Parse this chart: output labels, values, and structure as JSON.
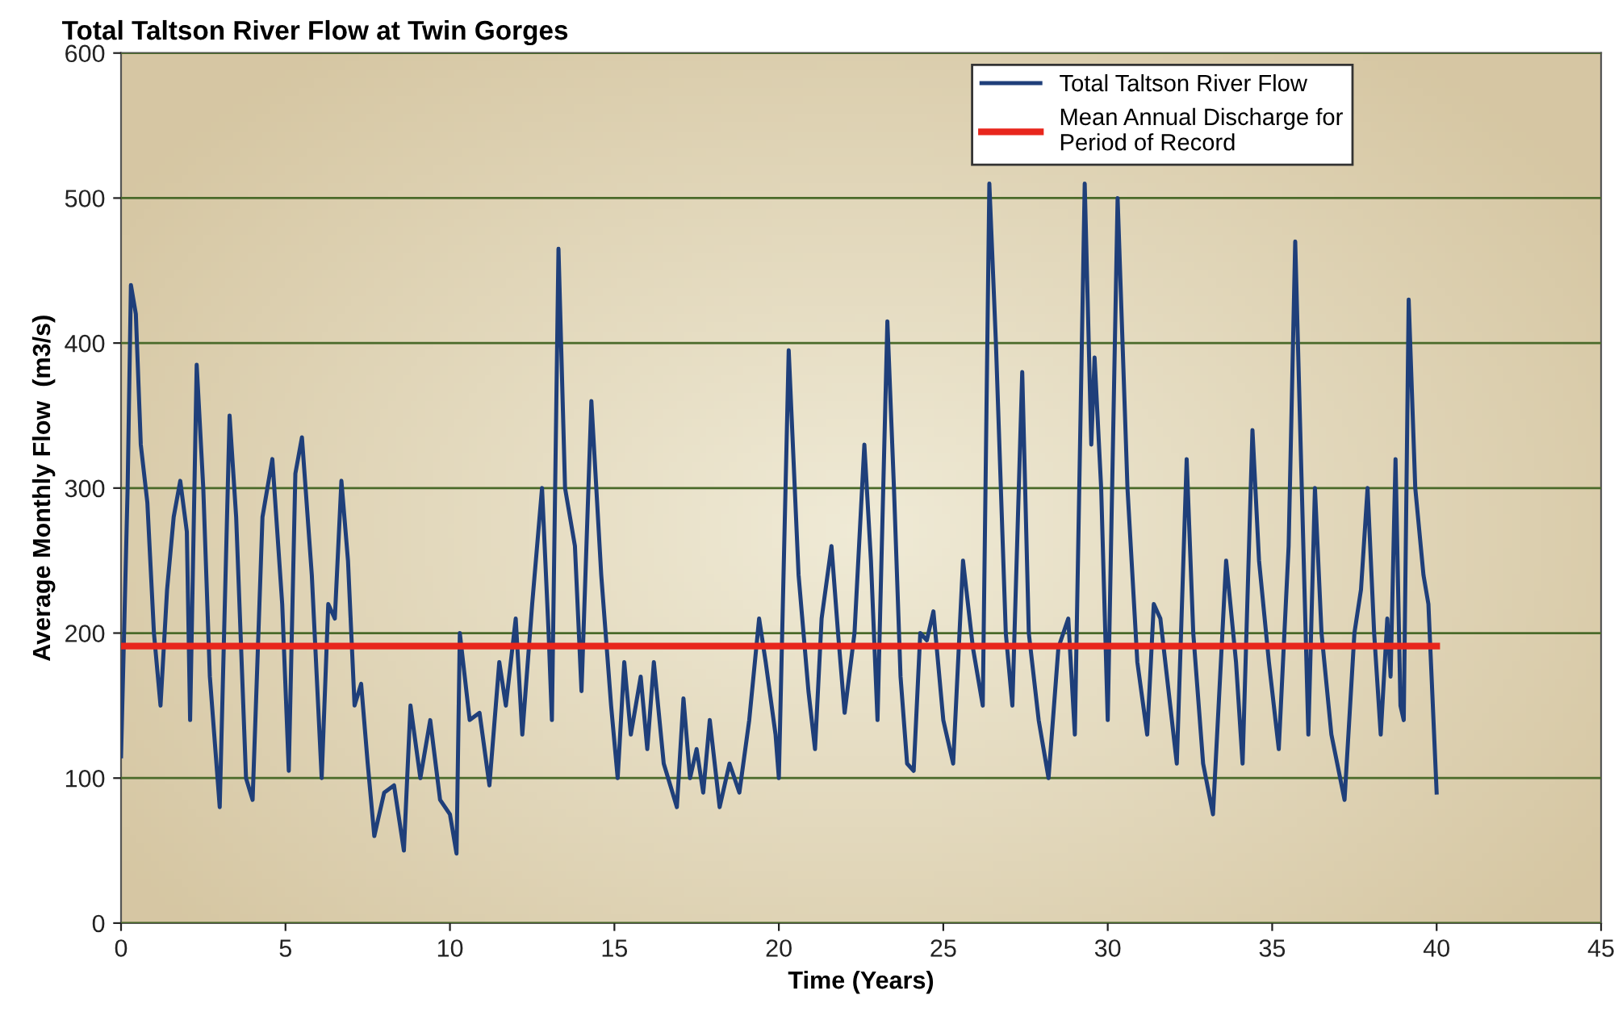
{
  "chart_data": {
    "type": "line",
    "title": "Total Taltson River Flow at Twin Gorges",
    "xlabel": "Time (Years)",
    "ylabel": "Average Monthly Flow  (m3/s)",
    "xlim": [
      0,
      45
    ],
    "xticks": [
      0,
      5,
      10,
      15,
      20,
      25,
      30,
      35,
      40,
      45
    ],
    "ylim": [
      0,
      600
    ],
    "yticks": [
      0,
      100,
      200,
      300,
      400,
      500,
      600
    ],
    "grid": "y",
    "legend": "top right",
    "marker": "none",
    "line_style": "solid",
    "series": [
      {
        "name": "Total Taltson River Flow",
        "color": "#1f3f7a",
        "x": [
          0,
          0.2,
          0.3,
          0.45,
          0.6,
          0.8,
          1.0,
          1.2,
          1.4,
          1.6,
          1.8,
          2.0,
          2.1,
          2.3,
          2.5,
          2.7,
          3.0,
          3.3,
          3.5,
          3.8,
          4.0,
          4.3,
          4.6,
          4.9,
          5.1,
          5.3,
          5.5,
          5.8,
          6.1,
          6.3,
          6.5,
          6.7,
          6.9,
          7.1,
          7.3,
          7.5,
          7.7,
          8.0,
          8.3,
          8.6,
          8.8,
          9.1,
          9.4,
          9.7,
          10.0,
          10.2,
          10.3,
          10.6,
          10.9,
          11.2,
          11.5,
          11.7,
          12.0,
          12.2,
          12.5,
          12.8,
          13.0,
          13.1,
          13.3,
          13.5,
          13.8,
          14.0,
          14.3,
          14.6,
          14.9,
          15.1,
          15.3,
          15.5,
          15.8,
          16.0,
          16.2,
          16.5,
          16.9,
          17.1,
          17.3,
          17.5,
          17.7,
          17.9,
          18.2,
          18.5,
          18.8,
          19.1,
          19.4,
          19.6,
          19.9,
          20.0,
          20.3,
          20.6,
          20.9,
          21.1,
          21.3,
          21.6,
          21.8,
          22.0,
          22.3,
          22.6,
          22.8,
          23.0,
          23.3,
          23.5,
          23.7,
          23.9,
          24.1,
          24.3,
          24.5,
          24.7,
          25.0,
          25.3,
          25.6,
          25.9,
          26.2,
          26.4,
          26.6,
          26.9,
          27.1,
          27.4,
          27.6,
          27.9,
          28.2,
          28.5,
          28.8,
          29.0,
          29.3,
          29.5,
          29.6,
          29.8,
          30.0,
          30.3,
          30.6,
          30.9,
          31.2,
          31.4,
          31.6,
          31.9,
          32.1,
          32.4,
          32.6,
          32.9,
          33.2,
          33.6,
          33.9,
          34.1,
          34.4,
          34.6,
          34.9,
          35.2,
          35.5,
          35.7,
          35.9,
          36.1,
          36.3,
          36.5,
          36.8,
          37.2,
          37.5,
          37.7,
          37.9,
          38.1,
          38.3,
          38.5,
          38.6,
          38.75,
          38.9,
          39.0,
          39.15,
          39.35,
          39.6,
          39.75,
          40.0
        ],
        "values": [
          115,
          300,
          440,
          420,
          330,
          290,
          200,
          150,
          230,
          280,
          305,
          270,
          140,
          385,
          300,
          170,
          80,
          350,
          280,
          100,
          85,
          280,
          320,
          220,
          105,
          310,
          335,
          240,
          100,
          220,
          210,
          305,
          250,
          150,
          165,
          110,
          60,
          90,
          95,
          50,
          150,
          100,
          140,
          85,
          75,
          48,
          200,
          140,
          145,
          95,
          180,
          150,
          210,
          130,
          220,
          300,
          200,
          140,
          465,
          300,
          260,
          160,
          360,
          240,
          150,
          100,
          180,
          130,
          170,
          120,
          180,
          110,
          80,
          155,
          100,
          120,
          90,
          140,
          80,
          110,
          90,
          140,
          210,
          180,
          130,
          100,
          395,
          240,
          160,
          120,
          210,
          260,
          200,
          145,
          200,
          330,
          250,
          140,
          415,
          300,
          170,
          110,
          105,
          200,
          195,
          215,
          140,
          110,
          250,
          190,
          150,
          510,
          400,
          200,
          150,
          380,
          200,
          140,
          100,
          190,
          210,
          130,
          510,
          330,
          390,
          300,
          140,
          500,
          300,
          180,
          130,
          220,
          210,
          150,
          110,
          320,
          200,
          110,
          75,
          250,
          180,
          110,
          340,
          250,
          180,
          120,
          260,
          470,
          300,
          130,
          300,
          200,
          130,
          85,
          200,
          230,
          300,
          200,
          130,
          210,
          170,
          320,
          150,
          140,
          430,
          300,
          240,
          220,
          90
        ]
      },
      {
        "name": "Mean Annual Discharge for\nPeriod of Record",
        "color": "#e8261c",
        "x": [
          0,
          40
        ],
        "values": [
          191,
          191
        ]
      }
    ]
  }
}
